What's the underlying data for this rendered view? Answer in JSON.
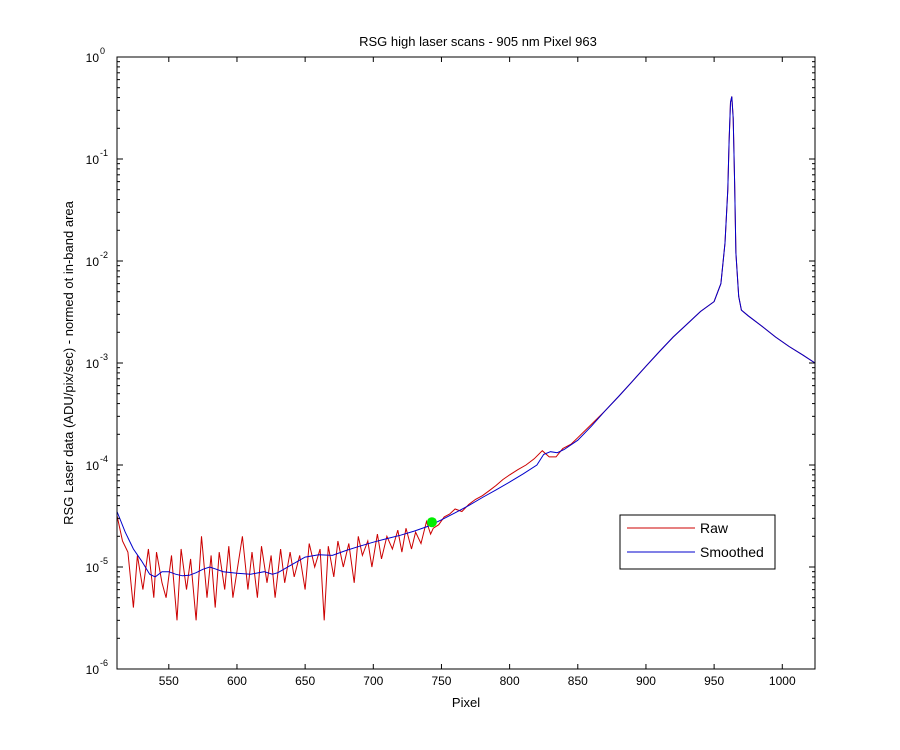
{
  "chart_data": {
    "type": "line",
    "title": "RSG high laser scans  - 905 nm    Pixel 963",
    "xlabel": "Pixel",
    "ylabel": "RSG Laser data (ADU/pix/sec) - normed ot in-band area",
    "xlim": [
      512,
      1024
    ],
    "ylim": [
      1e-06,
      1
    ],
    "yscale": "log",
    "grid": false,
    "legend_position": "right, lower middle",
    "x_ticks": [
      550,
      600,
      650,
      700,
      750,
      800,
      850,
      900,
      950,
      1000
    ],
    "x_tick_labels": [
      "550",
      "600",
      "650",
      "700",
      "750",
      "800",
      "850",
      "900",
      "950",
      "1000"
    ],
    "y_ticks": [
      {
        "value": 1,
        "base": "10",
        "exp": "0"
      },
      {
        "value": 0.1,
        "base": "10",
        "exp": "-1"
      },
      {
        "value": 0.01,
        "base": "10",
        "exp": "-2"
      },
      {
        "value": 0.001,
        "base": "10",
        "exp": "-3"
      },
      {
        "value": 0.0001,
        "base": "10",
        "exp": "-4"
      },
      {
        "value": 1e-05,
        "base": "10",
        "exp": "-5"
      },
      {
        "value": 1e-06,
        "base": "10",
        "exp": "-6"
      }
    ],
    "series": [
      {
        "name": "Raw",
        "color": "#cc0000",
        "x": [
          512,
          516,
          520,
          524,
          527,
          531,
          535,
          539,
          541,
          545,
          548,
          552,
          556,
          559,
          563,
          566,
          570,
          574,
          578,
          581,
          584,
          587,
          591,
          594,
          597,
          601,
          604,
          608,
          611,
          615,
          618,
          622,
          625,
          628,
          632,
          635,
          639,
          642,
          646,
          650,
          653,
          657,
          661,
          664,
          667,
          671,
          674,
          678,
          682,
          686,
          689,
          692,
          696,
          699,
          703,
          706,
          710,
          714,
          718,
          721,
          724,
          728,
          731,
          735,
          739,
          742,
          744,
          748,
          752,
          756,
          760,
          765,
          770,
          775,
          780,
          785,
          790,
          795,
          800,
          806,
          812,
          818,
          824,
          829,
          834,
          839,
          845,
          850,
          860,
          870,
          880,
          890,
          900,
          910,
          920,
          930,
          940,
          950,
          955,
          958,
          960,
          961,
          962,
          963,
          964,
          965,
          966,
          968,
          970,
          975,
          985,
          995,
          1005,
          1015,
          1024
        ],
        "y": [
          3.2e-05,
          1.8e-05,
          1.4e-05,
          4e-06,
          1.3e-05,
          6e-06,
          1.5e-05,
          5e-06,
          1.4e-05,
          7e-06,
          5e-06,
          1.3e-05,
          3e-06,
          1.5e-05,
          6e-06,
          1.2e-05,
          3e-06,
          2e-05,
          5e-06,
          1.3e-05,
          4e-06,
          1.4e-05,
          6e-06,
          1.6e-05,
          5e-06,
          1.1e-05,
          2e-05,
          6e-06,
          1.4e-05,
          5e-06,
          1.6e-05,
          7e-06,
          1.3e-05,
          5e-06,
          1.5e-05,
          7e-06,
          1.4e-05,
          8e-06,
          1.3e-05,
          6e-06,
          1.7e-05,
          1e-05,
          1.5e-05,
          3e-06,
          1.6e-05,
          8e-06,
          1.8e-05,
          1e-05,
          1.7e-05,
          7e-06,
          2e-05,
          1.3e-05,
          1.8e-05,
          1e-05,
          2.1e-05,
          1.2e-05,
          2e-05,
          1.5e-05,
          2.3e-05,
          1.4e-05,
          2.4e-05,
          1.5e-05,
          2.2e-05,
          1.7e-05,
          2.8e-05,
          2.1e-05,
          2.4e-05,
          2.6e-05,
          3.1e-05,
          3.3e-05,
          3.7e-05,
          3.5e-05,
          4.1e-05,
          4.6e-05,
          5e-05,
          5.6e-05,
          6.3e-05,
          7.2e-05,
          8e-05,
          9e-05,
          0.0001,
          0.000115,
          0.000138,
          0.00012,
          0.00012,
          0.000145,
          0.00016,
          0.000185,
          0.00025,
          0.00034,
          0.00047,
          0.00066,
          0.00093,
          0.0013,
          0.0018,
          0.0024,
          0.0032,
          0.004,
          0.006,
          0.015,
          0.05,
          0.15,
          0.36,
          0.41,
          0.25,
          0.06,
          0.012,
          0.0045,
          0.0033,
          0.0029,
          0.0023,
          0.0018,
          0.00145,
          0.0012,
          0.001
        ]
      },
      {
        "name": "Smoothed",
        "color": "#0000cc",
        "x": [
          512,
          518,
          524,
          530,
          536,
          540,
          545,
          550,
          555,
          560,
          565,
          570,
          575,
          580,
          585,
          590,
          600,
          610,
          620,
          626,
          630,
          640,
          650,
          660,
          670,
          680,
          690,
          700,
          710,
          720,
          730,
          740,
          750,
          760,
          770,
          780,
          790,
          800,
          810,
          820,
          825,
          830,
          835,
          840,
          850,
          860,
          870,
          880,
          890,
          900,
          910,
          920,
          930,
          940,
          950,
          955,
          958,
          960,
          961,
          962,
          963,
          964,
          965,
          966,
          968,
          970,
          975,
          985,
          995,
          1005,
          1015,
          1024
        ],
        "y": [
          3.5e-05,
          2.2e-05,
          1.5e-05,
          1.15e-05,
          8.5e-06,
          8e-06,
          9e-06,
          9e-06,
          8.5e-06,
          8.2e-06,
          8.3e-06,
          8.8e-06,
          9.5e-06,
          1e-05,
          9.5e-06,
          9e-06,
          8.7e-06,
          8.5e-06,
          9e-06,
          8.5e-06,
          8.8e-06,
          1.05e-05,
          1.25e-05,
          1.32e-05,
          1.3e-05,
          1.45e-05,
          1.6e-05,
          1.75e-05,
          1.9e-05,
          2.05e-05,
          2.25e-05,
          2.5e-05,
          2.9e-05,
          3.4e-05,
          4e-05,
          4.8e-05,
          5.7e-05,
          6.8e-05,
          8.2e-05,
          0.0001,
          0.000127,
          0.000135,
          0.000132,
          0.000142,
          0.000175,
          0.00024,
          0.00034,
          0.00047,
          0.00066,
          0.00093,
          0.0013,
          0.0018,
          0.0024,
          0.0032,
          0.004,
          0.006,
          0.015,
          0.05,
          0.15,
          0.36,
          0.41,
          0.25,
          0.06,
          0.012,
          0.0045,
          0.0033,
          0.0029,
          0.0023,
          0.0018,
          0.00145,
          0.0012,
          0.001
        ]
      }
    ],
    "marker": {
      "x": 743,
      "y": 2.75e-05,
      "color": "#00ee00"
    },
    "legend": [
      {
        "label": "Raw",
        "color": "#cc0000"
      },
      {
        "label": "Smoothed",
        "color": "#0000cc"
      }
    ]
  }
}
